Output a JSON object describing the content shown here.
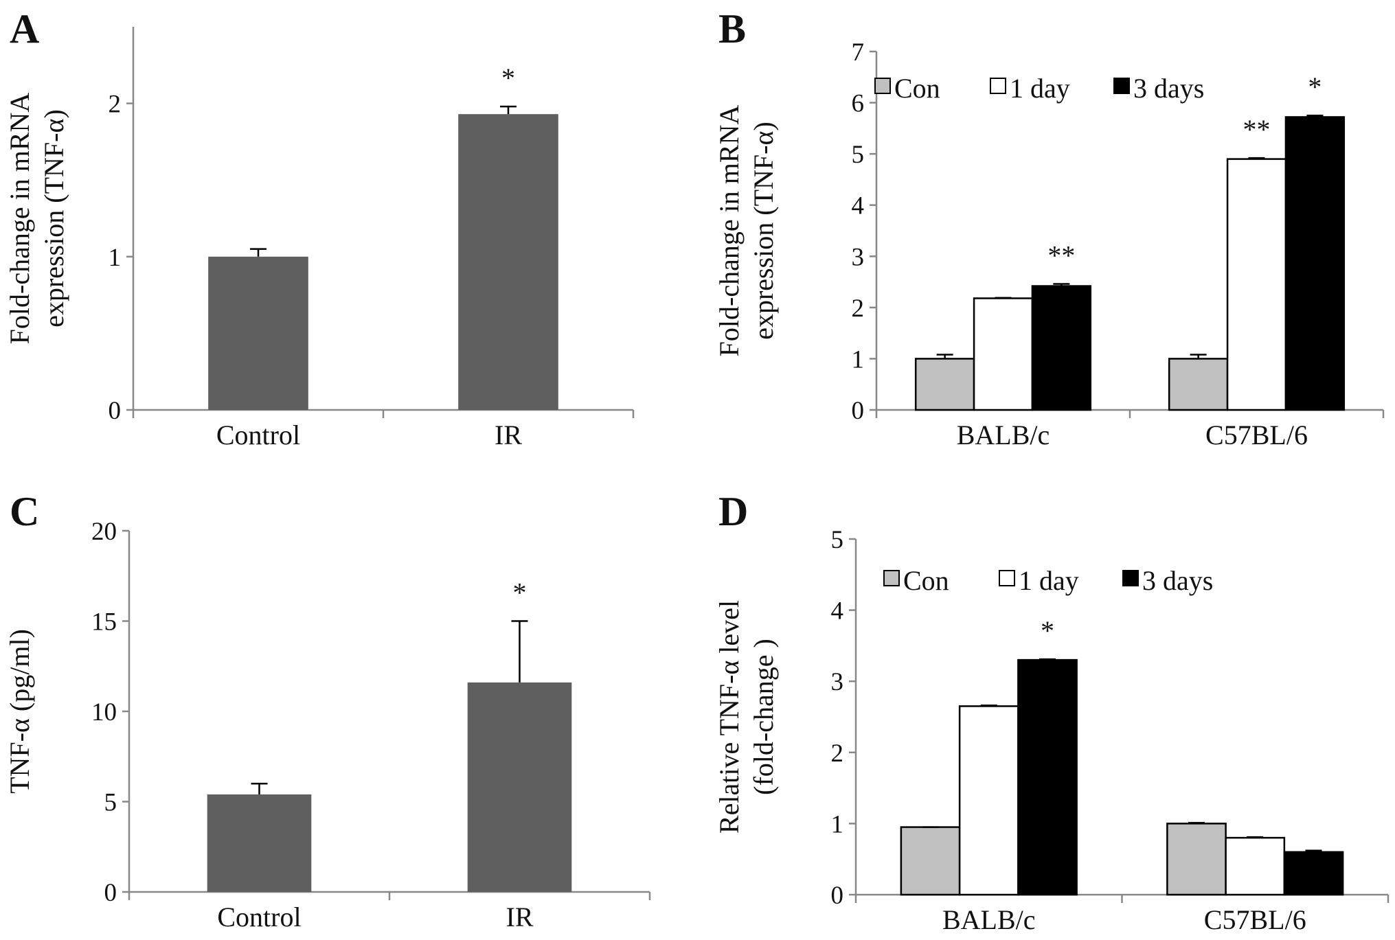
{
  "colors": {
    "single_bar": "#5f5f5f",
    "con": "#c0c0c0",
    "day1": "#ffffff",
    "day3": "#000000",
    "axis": "#888888"
  },
  "chart_data": [
    {
      "panel": "A",
      "type": "bar",
      "ylabel": [
        "Fold-change in mRNA",
        "expression (TNF-α)"
      ],
      "ylim": [
        0,
        2.5
      ],
      "yticks": [
        "0",
        "1",
        "2"
      ],
      "ytick_values": [
        0,
        1,
        2
      ],
      "categories": [
        "Control",
        "IR"
      ],
      "series": [
        {
          "values": [
            1.0,
            1.93
          ],
          "errors": [
            0.05,
            0.05
          ],
          "color": "#5f5f5f"
        }
      ],
      "significance": [
        {
          "category": 1,
          "series": 0,
          "label": "*"
        }
      ],
      "grid": false
    },
    {
      "panel": "B",
      "type": "bar",
      "ylabel": [
        "Fold-change in mRNA",
        "expression (TNF-α)"
      ],
      "ylim": [
        0,
        7
      ],
      "yticks": [
        "0",
        "1",
        "2",
        "3",
        "4",
        "5",
        "6",
        "7"
      ],
      "ytick_values": [
        0,
        1,
        2,
        3,
        4,
        5,
        6,
        7
      ],
      "categories": [
        "BALB/c",
        "C57BL/6"
      ],
      "series": [
        {
          "name": "Con",
          "values": [
            1.0,
            1.0
          ],
          "errors": [
            0.08,
            0.08
          ],
          "color": "#c0c0c0"
        },
        {
          "name": "1 day",
          "values": [
            2.18,
            4.9
          ],
          "errors": [
            0.01,
            0.02
          ],
          "color": "#ffffff"
        },
        {
          "name": "3 days",
          "values": [
            2.42,
            5.72
          ],
          "errors": [
            0.04,
            0.03
          ],
          "color": "#000000"
        }
      ],
      "significance": [
        {
          "category": 0,
          "series": 2,
          "label": "**"
        },
        {
          "category": 1,
          "series": 1,
          "label": "**"
        },
        {
          "category": 1,
          "series": 2,
          "label": "*"
        }
      ],
      "legend": "top-left",
      "grid": false
    },
    {
      "panel": "C",
      "type": "bar",
      "ylabel": [
        "TNF-α  (pg/ml)"
      ],
      "ylim": [
        0,
        20
      ],
      "yticks": [
        "0",
        "5",
        "10",
        "15",
        "20"
      ],
      "ytick_values": [
        0,
        5,
        10,
        15,
        20
      ],
      "categories": [
        "Control",
        "IR"
      ],
      "series": [
        {
          "values": [
            5.4,
            11.6
          ],
          "errors": [
            0.6,
            3.4
          ],
          "color": "#5f5f5f"
        }
      ],
      "significance": [
        {
          "category": 1,
          "series": 0,
          "label": "*"
        }
      ],
      "grid": false
    },
    {
      "panel": "D",
      "type": "bar",
      "ylabel": [
        "Relative TNF-α  level",
        "(fold-change )"
      ],
      "ylim": [
        0,
        5
      ],
      "yticks": [
        "0",
        "1",
        "2",
        "3",
        "4",
        "5"
      ],
      "ytick_values": [
        0,
        1,
        2,
        3,
        4,
        5
      ],
      "categories": [
        "BALB/c",
        "C57BL/6"
      ],
      "series": [
        {
          "name": "Con",
          "values": [
            0.95,
            1.0
          ],
          "errors": [
            0.0,
            0.01
          ],
          "color": "#c0c0c0"
        },
        {
          "name": "1 day",
          "values": [
            2.65,
            0.8
          ],
          "errors": [
            0.01,
            0.01
          ],
          "color": "#ffffff"
        },
        {
          "name": "3 days",
          "values": [
            3.3,
            0.6
          ],
          "errors": [
            0.01,
            0.02
          ],
          "color": "#000000"
        }
      ],
      "significance": [
        {
          "category": 0,
          "series": 2,
          "label": "*"
        }
      ],
      "legend": "top-left",
      "grid": false
    }
  ]
}
